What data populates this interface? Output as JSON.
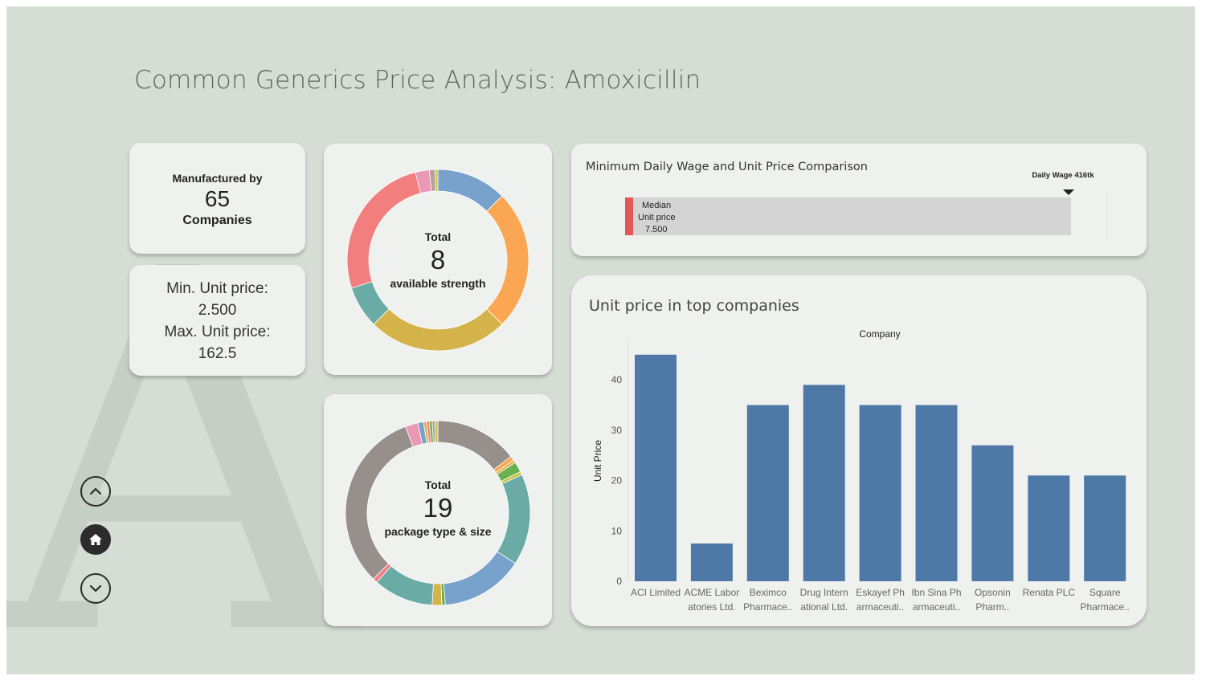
{
  "page_title": "Common Generics Price Analysis: Amoxicillin",
  "background_letter": "A",
  "kpi_companies": {
    "label_top": "Manufactured by",
    "value": "65",
    "label_bottom": "Companies"
  },
  "kpi_price": {
    "min_label": "Min. Unit price:",
    "min_value": "2.500",
    "max_label": "Max. Unit price:",
    "max_value": "162.5"
  },
  "strength_donut": {
    "total_label": "Total",
    "total_value": "8",
    "subtitle": "available strength",
    "segments": [
      {
        "value": 12.5,
        "color": "#78a2cb"
      },
      {
        "value": 25,
        "color": "#fba653"
      },
      {
        "value": 25,
        "color": "#d4b44a"
      },
      {
        "value": 7.5,
        "color": "#6aaba6"
      },
      {
        "value": 26,
        "color": "#f27e7e"
      },
      {
        "value": 2.5,
        "color": "#e999b5"
      },
      {
        "value": 1,
        "color": "#b9a09b"
      },
      {
        "value": 0.5,
        "color": "#c6c646"
      }
    ]
  },
  "package_donut": {
    "total_label": "Total",
    "total_value": "19",
    "subtitle": "package type & size",
    "segments": [
      {
        "value": 14.5,
        "color": "#978f8b"
      },
      {
        "value": 0.8,
        "color": "#fba653"
      },
      {
        "value": 0.5,
        "color": "#d4b44a"
      },
      {
        "value": 1.8,
        "color": "#6aaf50"
      },
      {
        "value": 0.6,
        "color": "#c6c646"
      },
      {
        "value": 16,
        "color": "#6aaba6"
      },
      {
        "value": 14.5,
        "color": "#78a2cb"
      },
      {
        "value": 0.6,
        "color": "#6aaf50"
      },
      {
        "value": 1.7,
        "color": "#d4b44a"
      },
      {
        "value": 10.5,
        "color": "#6aaba6"
      },
      {
        "value": 0.8,
        "color": "#f27e7e"
      },
      {
        "value": 32,
        "color": "#978f8b"
      },
      {
        "value": 2.2,
        "color": "#e999b5"
      },
      {
        "value": 1.0,
        "color": "#78a2cb"
      },
      {
        "value": 0.5,
        "color": "#d4b44a"
      },
      {
        "value": 0.5,
        "color": "#f27e7e"
      },
      {
        "value": 0.5,
        "color": "#6aaf50"
      },
      {
        "value": 0.5,
        "color": "#b9a09b"
      },
      {
        "value": 0.5,
        "color": "#c6c646"
      }
    ]
  },
  "wage_chart": {
    "title": "Minimum Daily Wage and Unit Price Comparison",
    "marker_label": "Daily Wage 416tk",
    "wage_value": 416,
    "median_value": 7.5,
    "median_label_line1": "Median",
    "median_label_line2": "Unit price",
    "median_label_line3": "7.500",
    "median_color": "#e15759",
    "bar_color": "#d4d4d4"
  },
  "chart_data": {
    "type": "bar",
    "title": "Unit price in top companies",
    "column_header": "Company",
    "ylabel": "Unit Price",
    "ylim": [
      0,
      48
    ],
    "yticks": [
      0,
      10,
      20,
      30,
      40
    ],
    "color": "#4e79a7",
    "categories": [
      {
        "line1": "ACI Limited",
        "line2": ""
      },
      {
        "line1": "ACME Labor",
        "line2": "atories Ltd."
      },
      {
        "line1": "Beximco",
        "line2": "Pharmace.."
      },
      {
        "line1": "Drug Intern",
        "line2": "ational Ltd."
      },
      {
        "line1": "Eskayef Ph",
        "line2": "armaceuti.."
      },
      {
        "line1": "Ibn Sina Ph",
        "line2": "armaceuti.."
      },
      {
        "line1": "Opsonin",
        "line2": "Pharm.."
      },
      {
        "line1": "Renata PLC",
        "line2": ""
      },
      {
        "line1": "Square",
        "line2": "Pharmace.."
      }
    ],
    "values": [
      45,
      7.5,
      35,
      39,
      35,
      35,
      27,
      21,
      21
    ]
  },
  "nav": {
    "up_icon": "chevron-up-icon",
    "home_icon": "home-icon",
    "down_icon": "chevron-down-icon"
  }
}
